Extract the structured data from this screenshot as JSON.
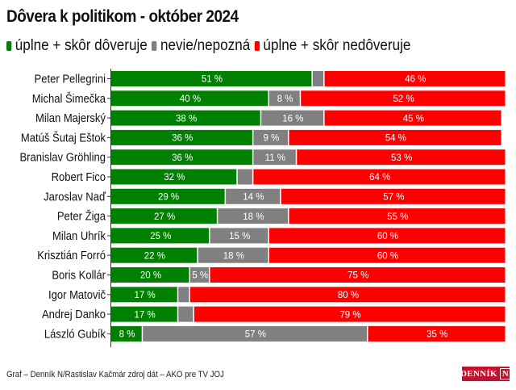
{
  "chart_data": {
    "type": "bar",
    "orientation": "horizontal",
    "stacked": true,
    "title": "Dôvera k politikom - október 2024",
    "xlabel": "",
    "ylabel": "",
    "xlim": [
      0,
      100
    ],
    "grid": false,
    "legend_position": "top-left",
    "value_suffix": " %",
    "categories": [
      "Peter Pellegrini",
      "Michal Šimečka",
      "Milan Majerský",
      "Matúš Šutaj Eštok",
      "Branislav Gröhling",
      "Robert Fico",
      "Jaroslav Naď",
      "Peter Žiga",
      "Milan Uhrík",
      "Krisztián Forró",
      "Boris Kollár",
      "Igor Matovič",
      "Andrej Danko",
      "László Gubík"
    ],
    "series": [
      {
        "name": "úplne + skôr dôveruje",
        "color": "#008000",
        "values": [
          51,
          40,
          38,
          36,
          36,
          32,
          29,
          27,
          25,
          22,
          20,
          17,
          17,
          8
        ],
        "labeled": [
          true,
          true,
          true,
          true,
          true,
          true,
          true,
          true,
          true,
          true,
          true,
          true,
          true,
          true
        ]
      },
      {
        "name": "nevie/nepozná",
        "color": "#808080",
        "values": [
          3,
          8,
          16,
          9,
          11,
          4,
          14,
          18,
          15,
          18,
          5,
          3,
          4,
          57
        ],
        "labeled": [
          false,
          true,
          true,
          true,
          true,
          false,
          true,
          true,
          true,
          true,
          true,
          false,
          false,
          true
        ]
      },
      {
        "name": "úplne + skôr nedôveruje",
        "color": "#ff0000",
        "values": [
          46,
          52,
          45,
          54,
          53,
          64,
          57,
          55,
          60,
          60,
          75,
          80,
          79,
          35
        ],
        "labeled": [
          true,
          true,
          true,
          true,
          true,
          true,
          true,
          true,
          true,
          true,
          true,
          true,
          true,
          true
        ]
      }
    ]
  },
  "footer": {
    "source": "Graf – Denník N/Rastislav Kačmár zdroj dát – AKO pre TV JOJ"
  },
  "logo": {
    "text": "DENNÍK",
    "mark": "N",
    "color": "#c0122c"
  }
}
